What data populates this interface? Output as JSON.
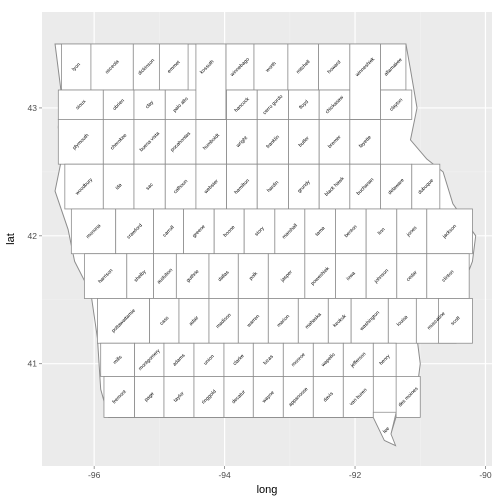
{
  "chart_data": {
    "type": "map",
    "xlabel": "long",
    "ylabel": "lat",
    "xlim": [
      -96.8,
      -89.9
    ],
    "ylim": [
      40.2,
      43.75
    ],
    "x_ticks": [
      -96,
      -94,
      -92,
      -90
    ],
    "y_ticks": [
      41,
      42,
      43
    ],
    "x_tick_labels": [
      "-96",
      "-94",
      "-92",
      "-90"
    ],
    "y_tick_labels": [
      "41",
      "42",
      "43"
    ],
    "grid": true,
    "panel_color": "#ebebeb",
    "grid_major_color": "#ffffff",
    "grid_minor_color": "#f2f2f2",
    "county_fill": "#ffffff",
    "county_stroke": "#8c8c8c",
    "label_angle": -45,
    "rows": [
      {
        "y0": 43.5,
        "y1": 43.14,
        "cells": [
          {
            "x0": -96.5,
            "x1": -96.05,
            "name": "lyon"
          },
          {
            "x0": -96.05,
            "x1": -95.4,
            "name": "osceola"
          },
          {
            "x0": -95.4,
            "x1": -95.0,
            "name": "dickinson"
          },
          {
            "x0": -95.0,
            "x1": -94.56,
            "name": "emmet"
          },
          {
            "x0": -94.56,
            "x1": -93.98,
            "name": "kossuth"
          },
          {
            "x0": -93.98,
            "x1": -93.55,
            "name": "winnebago"
          },
          {
            "x0": -93.55,
            "x1": -93.03,
            "name": "worth"
          },
          {
            "x0": -93.03,
            "x1": -92.56,
            "name": "mitchell"
          },
          {
            "x0": -92.56,
            "x1": -92.08,
            "name": "howard"
          },
          {
            "x0": -92.08,
            "x1": -91.61,
            "name": "winneshiek"
          },
          {
            "x0": -91.61,
            "x1": -91.22,
            "name": "allamakee"
          }
        ]
      },
      {
        "y0": 43.14,
        "y1": 42.91,
        "cells": [
          {
            "x0": -96.55,
            "x1": -95.86,
            "name": "sioux"
          },
          {
            "x0": -95.86,
            "x1": -95.39,
            "name": "obrien"
          },
          {
            "x0": -95.39,
            "x1": -94.91,
            "name": "clay"
          },
          {
            "x0": -94.91,
            "x1": -94.44,
            "name": "palo alto"
          },
          {
            "x0": -93.97,
            "x1": -93.5,
            "name": "hancock"
          },
          {
            "x0": -93.5,
            "x1": -93.02,
            "name": "cerro gordo"
          },
          {
            "x0": -93.02,
            "x1": -92.55,
            "name": "floyd"
          },
          {
            "x0": -92.55,
            "x1": -92.08,
            "name": "chickasaw"
          },
          {
            "x0": -91.61,
            "x1": -91.13,
            "name": "clayton"
          }
        ]
      },
      {
        "y0": 42.91,
        "y1": 42.56,
        "cells": [
          {
            "x0": -96.55,
            "x1": -95.86,
            "name": "plymouth"
          },
          {
            "x0": -95.86,
            "x1": -95.39,
            "name": "cherokee"
          },
          {
            "x0": -95.39,
            "x1": -94.91,
            "name": "buena vista"
          },
          {
            "x0": -94.91,
            "x1": -94.44,
            "name": "pocahontas"
          },
          {
            "x0": -94.44,
            "x1": -93.97,
            "name": "humboldt"
          },
          {
            "x0": -93.97,
            "x1": -93.5,
            "name": "wright"
          },
          {
            "x0": -93.5,
            "x1": -93.02,
            "name": "franklin"
          },
          {
            "x0": -93.02,
            "x1": -92.55,
            "name": "butler"
          },
          {
            "x0": -92.55,
            "x1": -92.08,
            "name": "bremer"
          },
          {
            "x0": -92.08,
            "x1": -91.61,
            "name": "fayette"
          }
        ]
      },
      {
        "y0": 42.56,
        "y1": 42.21,
        "cells": [
          {
            "x0": -96.45,
            "x1": -95.86,
            "name": "woodbury"
          },
          {
            "x0": -95.86,
            "x1": -95.39,
            "name": "ida"
          },
          {
            "x0": -95.39,
            "x1": -94.91,
            "name": "sac"
          },
          {
            "x0": -94.91,
            "x1": -94.44,
            "name": "calhoun"
          },
          {
            "x0": -94.44,
            "x1": -93.97,
            "name": "webster"
          },
          {
            "x0": -93.97,
            "x1": -93.5,
            "name": "hamilton"
          },
          {
            "x0": -93.5,
            "x1": -93.02,
            "name": "hardin"
          },
          {
            "x0": -93.02,
            "x1": -92.55,
            "name": "grundy"
          },
          {
            "x0": -92.55,
            "x1": -92.08,
            "name": "black hawk"
          },
          {
            "x0": -92.08,
            "x1": -91.61,
            "name": "buchanan"
          },
          {
            "x0": -91.61,
            "x1": -91.13,
            "name": "delaware"
          },
          {
            "x0": -91.13,
            "x1": -90.7,
            "name": "dubuque"
          }
        ]
      },
      {
        "y0": 42.21,
        "y1": 41.86,
        "cells": [
          {
            "x0": -96.35,
            "x1": -95.67,
            "name": "monona"
          },
          {
            "x0": -95.67,
            "x1": -95.09,
            "name": "crawford"
          },
          {
            "x0": -95.09,
            "x1": -94.63,
            "name": "carroll"
          },
          {
            "x0": -94.63,
            "x1": -94.16,
            "name": "greene"
          },
          {
            "x0": -94.16,
            "x1": -93.7,
            "name": "boone"
          },
          {
            "x0": -93.7,
            "x1": -93.23,
            "name": "story"
          },
          {
            "x0": -93.23,
            "x1": -92.77,
            "name": "marshall"
          },
          {
            "x0": -92.77,
            "x1": -92.3,
            "name": "tama"
          },
          {
            "x0": -92.3,
            "x1": -91.83,
            "name": "benton"
          },
          {
            "x0": -91.83,
            "x1": -91.36,
            "name": "linn"
          },
          {
            "x0": -91.36,
            "x1": -90.9,
            "name": "jones"
          },
          {
            "x0": -90.9,
            "x1": -90.2,
            "name": "jackson"
          }
        ]
      },
      {
        "y0": 41.86,
        "y1": 41.51,
        "cells": [
          {
            "x0": -96.15,
            "x1": -95.5,
            "name": "harrison"
          },
          {
            "x0": -95.5,
            "x1": -95.09,
            "name": "shelby"
          },
          {
            "x0": -95.09,
            "x1": -94.74,
            "name": "audubon"
          },
          {
            "x0": -94.74,
            "x1": -94.24,
            "name": "guthrie"
          },
          {
            "x0": -94.24,
            "x1": -93.79,
            "name": "dallas"
          },
          {
            "x0": -93.79,
            "x1": -93.33,
            "name": "polk"
          },
          {
            "x0": -93.33,
            "x1": -92.77,
            "name": "jasper"
          },
          {
            "x0": -92.77,
            "x1": -92.3,
            "name": "poweshiek"
          },
          {
            "x0": -92.3,
            "x1": -91.83,
            "name": "iowa"
          },
          {
            "x0": -91.83,
            "x1": -91.36,
            "name": "johnson"
          },
          {
            "x0": -91.36,
            "x1": -90.9,
            "name": "cedar"
          },
          {
            "x0": -90.9,
            "x1": -90.25,
            "name": "clinton"
          }
        ]
      },
      {
        "y0": 41.51,
        "y1": 41.16,
        "cells": [
          {
            "x0": -95.95,
            "x1": -95.15,
            "name": "pottawattamie"
          },
          {
            "x0": -95.15,
            "x1": -94.7,
            "name": "cass"
          },
          {
            "x0": -94.7,
            "x1": -94.24,
            "name": "adair"
          },
          {
            "x0": -94.24,
            "x1": -93.79,
            "name": "madison"
          },
          {
            "x0": -93.79,
            "x1": -93.33,
            "name": "warren"
          },
          {
            "x0": -93.33,
            "x1": -92.87,
            "name": "marion"
          },
          {
            "x0": -92.87,
            "x1": -92.41,
            "name": "mahaska"
          },
          {
            "x0": -92.41,
            "x1": -92.06,
            "name": "keokuk"
          },
          {
            "x0": -92.06,
            "x1": -91.49,
            "name": "washington"
          },
          {
            "x0": -91.49,
            "x1": -91.06,
            "name": "louisa"
          },
          {
            "x0": -91.06,
            "x1": -90.45,
            "name": "muscatine"
          },
          {
            "x0": -90.72,
            "x1": -90.2,
            "name": "scott"
          }
        ]
      },
      {
        "y0": 41.16,
        "y1": 40.9,
        "cells": [
          {
            "x0": -95.9,
            "x1": -95.38,
            "name": "mills"
          },
          {
            "x0": -95.38,
            "x1": -94.93,
            "name": "montgomery"
          },
          {
            "x0": -94.93,
            "x1": -94.47,
            "name": "adams"
          },
          {
            "x0": -94.47,
            "x1": -94.01,
            "name": "union"
          },
          {
            "x0": -94.01,
            "x1": -93.56,
            "name": "clarke"
          },
          {
            "x0": -93.56,
            "x1": -93.1,
            "name": "lucas"
          },
          {
            "x0": -93.1,
            "x1": -92.64,
            "name": "monroe"
          },
          {
            "x0": -92.64,
            "x1": -92.18,
            "name": "wapello"
          },
          {
            "x0": -92.18,
            "x1": -91.72,
            "name": "jefferson"
          },
          {
            "x0": -91.72,
            "x1": -91.37,
            "name": "henry"
          }
        ]
      },
      {
        "y0": 40.9,
        "y1": 40.58,
        "cells": [
          {
            "x0": -95.85,
            "x1": -95.38,
            "name": "fremont"
          },
          {
            "x0": -95.38,
            "x1": -94.93,
            "name": "page"
          },
          {
            "x0": -94.93,
            "x1": -94.47,
            "name": "taylor"
          },
          {
            "x0": -94.47,
            "x1": -94.01,
            "name": "ringgold"
          },
          {
            "x0": -94.01,
            "x1": -93.56,
            "name": "decatur"
          },
          {
            "x0": -93.56,
            "x1": -93.1,
            "name": "wayne"
          },
          {
            "x0": -93.1,
            "x1": -92.64,
            "name": "appanoose"
          },
          {
            "x0": -92.64,
            "x1": -92.18,
            "name": "davis"
          },
          {
            "x0": -92.18,
            "x1": -91.72,
            "name": "van buren"
          },
          {
            "x0": -91.37,
            "x1": -91.0,
            "name": "des moines"
          }
        ]
      }
    ],
    "specials": [
      {
        "name": "kossuth",
        "poly": [
          [
            -94.44,
            43.5
          ],
          [
            -93.98,
            43.5
          ],
          [
            -93.98,
            42.91
          ],
          [
            -94.44,
            42.91
          ]
        ]
      },
      {
        "name": "winneshiek",
        "poly": [
          [
            -92.08,
            43.5
          ],
          [
            -91.61,
            43.5
          ],
          [
            -91.61,
            42.91
          ],
          [
            -92.08,
            42.91
          ]
        ]
      },
      {
        "name": "lee",
        "poly": [
          [
            -91.72,
            40.62
          ],
          [
            -91.37,
            40.62
          ],
          [
            -91.45,
            40.45
          ],
          [
            -91.38,
            40.36
          ],
          [
            -91.55,
            40.4
          ],
          [
            -91.72,
            40.58
          ]
        ]
      }
    ],
    "extra_labels": [
      {
        "name": "lee",
        "x": -91.52,
        "y": 40.48
      }
    ],
    "outline": [
      [
        -96.6,
        43.5
      ],
      [
        -91.22,
        43.5
      ],
      [
        -91.15,
        43.3
      ],
      [
        -91.05,
        43.0
      ],
      [
        -91.15,
        42.75
      ],
      [
        -90.9,
        42.6
      ],
      [
        -90.65,
        42.5
      ],
      [
        -90.5,
        42.25
      ],
      [
        -90.15,
        42.0
      ],
      [
        -90.2,
        41.8
      ],
      [
        -90.35,
        41.6
      ],
      [
        -90.6,
        41.5
      ],
      [
        -91.0,
        41.4
      ],
      [
        -91.05,
        41.2
      ],
      [
        -91.0,
        41.0
      ],
      [
        -91.05,
        40.8
      ],
      [
        -91.35,
        40.62
      ],
      [
        -91.45,
        40.45
      ],
      [
        -91.38,
        40.36
      ],
      [
        -91.55,
        40.4
      ],
      [
        -91.72,
        40.58
      ],
      [
        -95.78,
        40.58
      ],
      [
        -95.9,
        40.8
      ],
      [
        -95.95,
        41.2
      ],
      [
        -96.05,
        41.55
      ],
      [
        -96.3,
        41.8
      ],
      [
        -96.4,
        42.05
      ],
      [
        -96.6,
        42.35
      ],
      [
        -96.5,
        42.6
      ],
      [
        -96.55,
        42.85
      ],
      [
        -96.5,
        43.1
      ],
      [
        -96.6,
        43.5
      ]
    ]
  }
}
